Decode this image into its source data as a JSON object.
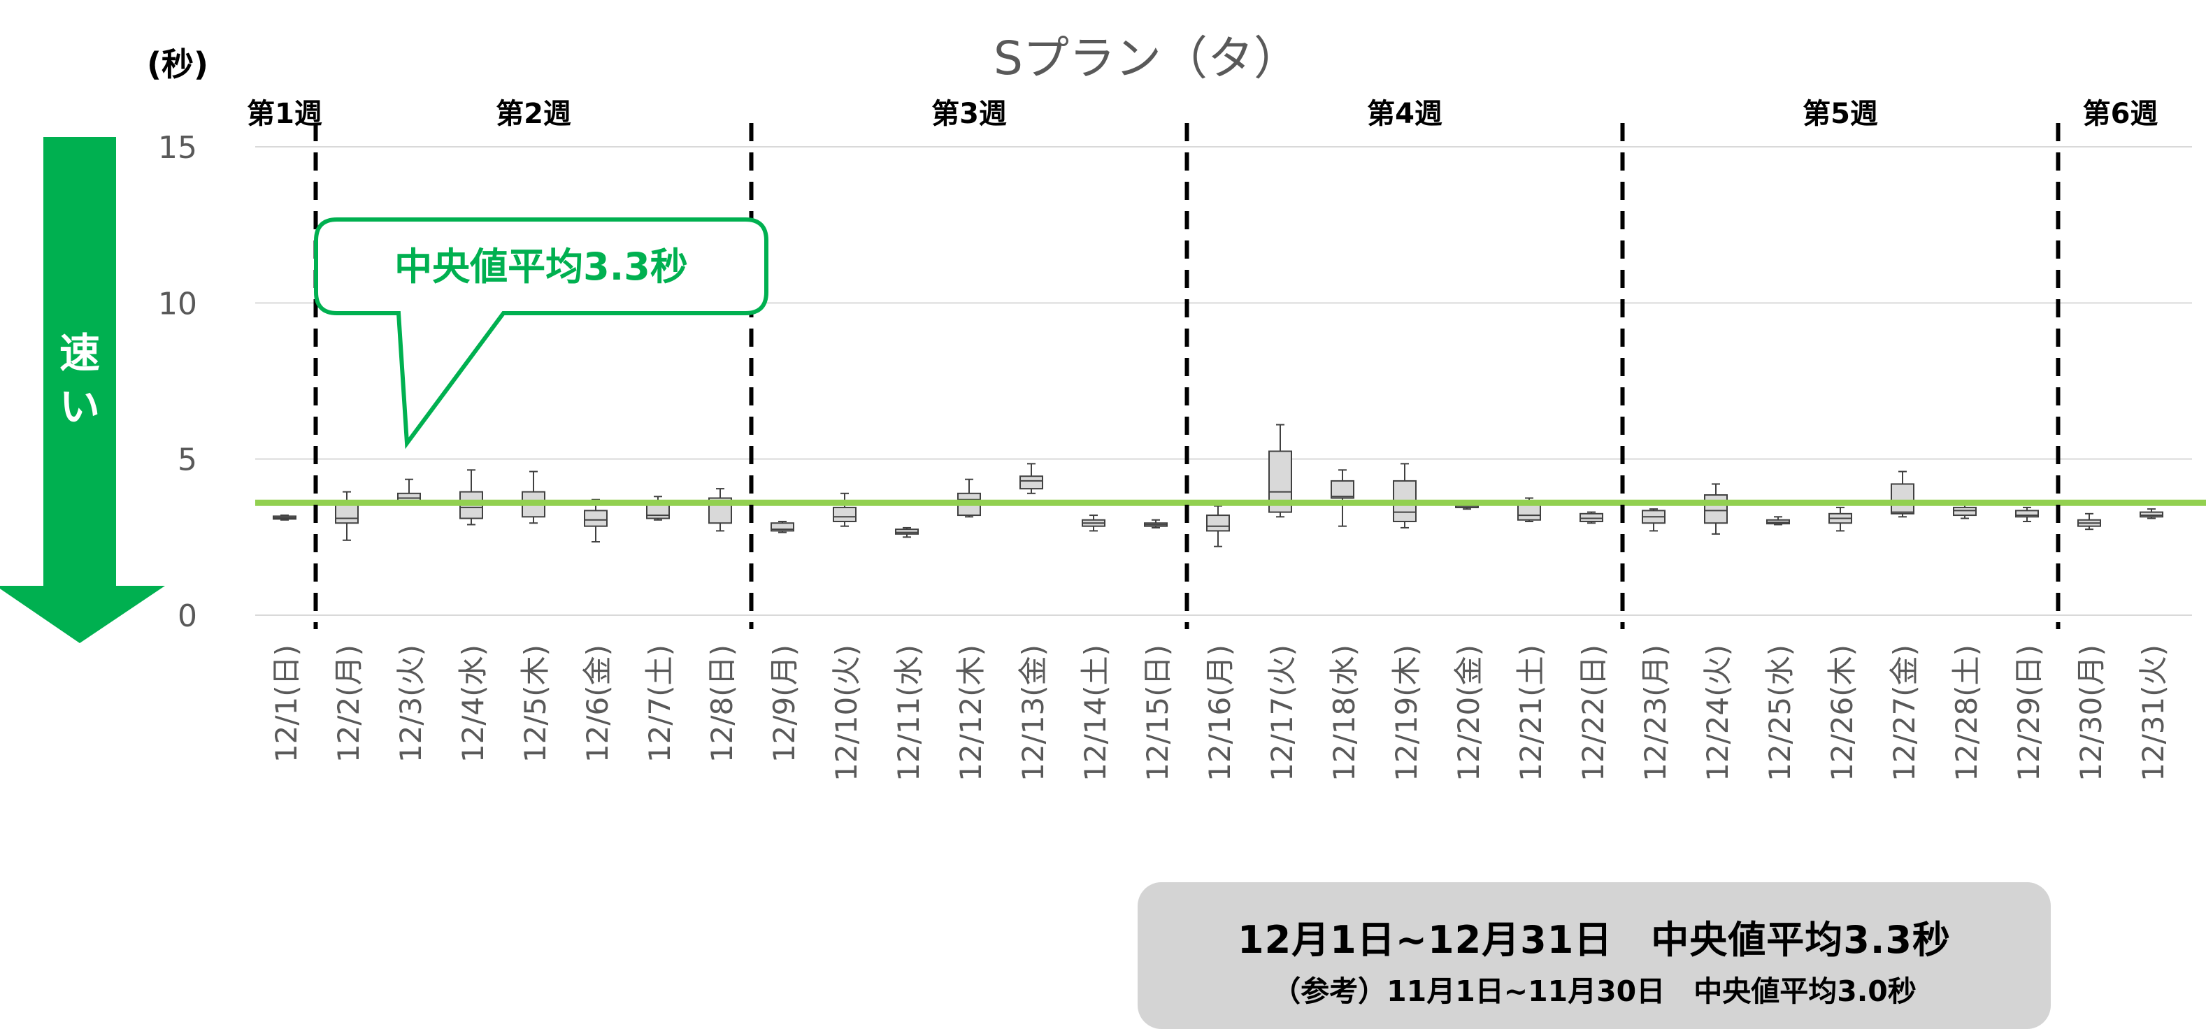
{
  "chart_data": {
    "type": "boxplot",
    "title": "Sプラン（タ）",
    "y_unit_label": "(秒)",
    "ylim": [
      0,
      15
    ],
    "yticks": [
      0,
      5,
      10,
      15
    ],
    "grid": true,
    "categories": [
      "12/1(日)",
      "12/2(月)",
      "12/3(火)",
      "12/4(水)",
      "12/5(木)",
      "12/6(金)",
      "12/7(土)",
      "12/8(日)",
      "12/9(月)",
      "12/10(火)",
      "12/11(水)",
      "12/12(木)",
      "12/13(金)",
      "12/14(土)",
      "12/15(日)",
      "12/16(月)",
      "12/17(火)",
      "12/18(水)",
      "12/19(木)",
      "12/20(金)",
      "12/21(土)",
      "12/22(日)",
      "12/23(月)",
      "12/24(火)",
      "12/25(水)",
      "12/26(木)",
      "12/27(金)",
      "12/28(土)",
      "12/29(日)",
      "12/30(月)",
      "12/31(火)"
    ],
    "boxes": [
      {
        "min": 3.05,
        "q1": 3.08,
        "median": 3.12,
        "q3": 3.17,
        "max": 3.2
      },
      {
        "min": 2.4,
        "q1": 2.95,
        "median": 3.1,
        "q3": 3.65,
        "max": 3.95
      },
      {
        "min": 3.55,
        "q1": 3.65,
        "median": 3.75,
        "q3": 3.9,
        "max": 4.35
      },
      {
        "min": 2.9,
        "q1": 3.1,
        "median": 3.45,
        "q3": 3.95,
        "max": 4.65
      },
      {
        "min": 2.95,
        "q1": 3.15,
        "median": 3.6,
        "q3": 3.95,
        "max": 4.6
      },
      {
        "min": 2.35,
        "q1": 2.85,
        "median": 3.05,
        "q3": 3.35,
        "max": 3.7
      },
      {
        "min": 3.05,
        "q1": 3.1,
        "median": 3.2,
        "q3": 3.6,
        "max": 3.8
      },
      {
        "min": 2.7,
        "q1": 2.95,
        "median": 3.6,
        "q3": 3.75,
        "max": 4.05
      },
      {
        "min": 2.65,
        "q1": 2.7,
        "median": 2.75,
        "q3": 2.95,
        "max": 3.0
      },
      {
        "min": 2.85,
        "q1": 3.0,
        "median": 3.15,
        "q3": 3.45,
        "max": 3.9
      },
      {
        "min": 2.5,
        "q1": 2.6,
        "median": 2.65,
        "q3": 2.75,
        "max": 2.8
      },
      {
        "min": 3.15,
        "q1": 3.2,
        "median": 3.7,
        "q3": 3.9,
        "max": 4.35
      },
      {
        "min": 3.9,
        "q1": 4.05,
        "median": 4.3,
        "q3": 4.45,
        "max": 4.85
      },
      {
        "min": 2.7,
        "q1": 2.85,
        "median": 2.95,
        "q3": 3.05,
        "max": 3.2
      },
      {
        "min": 2.8,
        "q1": 2.85,
        "median": 2.9,
        "q3": 2.95,
        "max": 3.05
      },
      {
        "min": 2.2,
        "q1": 2.7,
        "median": 2.85,
        "q3": 3.2,
        "max": 3.5
      },
      {
        "min": 3.15,
        "q1": 3.3,
        "median": 3.95,
        "q3": 5.25,
        "max": 6.1
      },
      {
        "min": 2.85,
        "q1": 3.75,
        "median": 3.8,
        "q3": 4.3,
        "max": 4.65
      },
      {
        "min": 2.8,
        "q1": 3.0,
        "median": 3.3,
        "q3": 4.3,
        "max": 4.85
      },
      {
        "min": 3.4,
        "q1": 3.45,
        "median": 3.45,
        "q3": 3.5,
        "max": 3.55
      },
      {
        "min": 3.0,
        "q1": 3.05,
        "median": 3.2,
        "q3": 3.55,
        "max": 3.75
      },
      {
        "min": 2.95,
        "q1": 3.0,
        "median": 3.1,
        "q3": 3.25,
        "max": 3.3
      },
      {
        "min": 2.7,
        "q1": 2.95,
        "median": 3.15,
        "q3": 3.35,
        "max": 3.4
      },
      {
        "min": 2.6,
        "q1": 2.95,
        "median": 3.35,
        "q3": 3.85,
        "max": 4.2
      },
      {
        "min": 2.9,
        "q1": 2.93,
        "median": 2.97,
        "q3": 3.05,
        "max": 3.15
      },
      {
        "min": 2.7,
        "q1": 2.95,
        "median": 3.1,
        "q3": 3.25,
        "max": 3.45
      },
      {
        "min": 3.15,
        "q1": 3.25,
        "median": 3.3,
        "q3": 4.2,
        "max": 4.6
      },
      {
        "min": 3.1,
        "q1": 3.2,
        "median": 3.35,
        "q3": 3.45,
        "max": 3.55
      },
      {
        "min": 3.0,
        "q1": 3.15,
        "median": 3.2,
        "q3": 3.35,
        "max": 3.45
      },
      {
        "min": 2.75,
        "q1": 2.85,
        "median": 2.95,
        "q3": 3.05,
        "max": 3.25
      },
      {
        "min": 3.1,
        "q1": 3.15,
        "median": 3.2,
        "q3": 3.3,
        "max": 3.4
      }
    ],
    "reference_line": {
      "value": 3.6,
      "color": "#92d050"
    },
    "week_dividers_after_index": [
      0,
      7,
      14,
      21,
      28
    ],
    "week_labels": [
      {
        "label": "第1週",
        "start": 0,
        "end": 0
      },
      {
        "label": "第2週",
        "start": 1,
        "end": 7
      },
      {
        "label": "第3週",
        "start": 8,
        "end": 14
      },
      {
        "label": "第4週",
        "start": 15,
        "end": 21
      },
      {
        "label": "第5週",
        "start": 22,
        "end": 28
      },
      {
        "label": "第6週",
        "start": 29,
        "end": 30
      }
    ],
    "callout": {
      "text": "中央値平均3.3秒",
      "points_to_index": 2,
      "color": "#00b050"
    },
    "side_arrow": {
      "text": "速い",
      "color": "#00b050"
    }
  },
  "summary": {
    "main": "12月1日~12月31日　中央値平均3.3秒",
    "reference": "（参考）11月1日~11月30日　中央値平均3.0秒"
  },
  "colors": {
    "box_fill": "#d9d9d9",
    "box_stroke": "#404040",
    "grid": "#d9d9d9",
    "text_gray": "#595959",
    "summary_bg": "#d4d4d4"
  }
}
